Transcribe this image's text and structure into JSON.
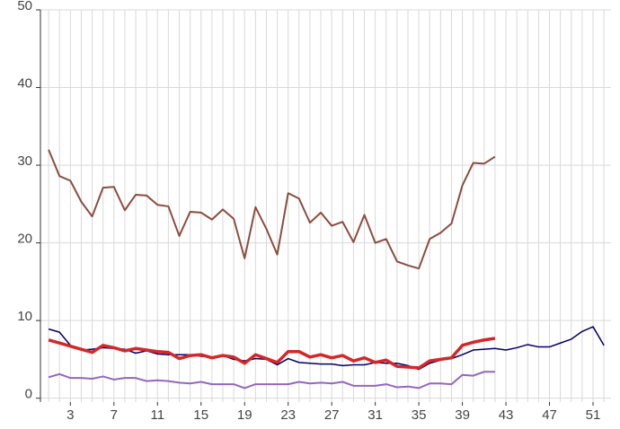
{
  "chart_data": {
    "type": "line",
    "x": [
      1,
      2,
      3,
      4,
      5,
      6,
      7,
      8,
      9,
      10,
      11,
      12,
      13,
      14,
      15,
      16,
      17,
      18,
      19,
      20,
      21,
      22,
      23,
      24,
      25,
      26,
      27,
      28,
      29,
      30,
      31,
      32,
      33,
      34,
      35,
      36,
      37,
      38,
      39,
      40,
      41,
      42,
      43,
      44,
      45,
      46,
      47,
      48,
      49,
      50,
      51,
      52
    ],
    "series": [
      {
        "color": "#8b4d3e",
        "width": 2,
        "values": [
          32,
          28.6,
          28,
          25.3,
          23.4,
          27.1,
          27.2,
          24.2,
          26.2,
          26.1,
          24.9,
          24.7,
          20.9,
          24,
          23.9,
          23,
          24.3,
          23.1,
          18,
          24.6,
          21.8,
          18.5,
          26.4,
          25.7,
          22.6,
          23.9,
          22.2,
          22.7,
          20.1,
          23.6,
          20,
          20.5,
          17.6,
          17.1,
          16.7,
          20.5,
          21.3,
          22.5,
          27.4,
          30.3,
          30.2,
          31.1,
          null,
          null,
          null,
          null,
          null,
          null,
          null,
          null,
          null,
          null
        ]
      },
      {
        "color": "#000066",
        "width": 1.5,
        "values": [
          8.9,
          8.5,
          6.8,
          6.2,
          6.3,
          6.5,
          6.4,
          6.3,
          5.8,
          6.1,
          5.7,
          5.6,
          5.6,
          5.6,
          5.4,
          5.3,
          5.5,
          5,
          4.8,
          5.1,
          5,
          4.3,
          5.1,
          4.6,
          4.5,
          4.4,
          4.4,
          4.2,
          4.3,
          4.3,
          4.6,
          4.5,
          4.5,
          4.2,
          3.7,
          4.5,
          4.9,
          5.1,
          5.6,
          6.2,
          6.3,
          6.4,
          6.2,
          6.5,
          6.9,
          6.6,
          6.6,
          7.1,
          7.6,
          8.6,
          9.2,
          6.8
        ]
      },
      {
        "color": "#d62728",
        "width": 3.5,
        "values": [
          7.5,
          7.1,
          6.7,
          6.3,
          5.9,
          6.8,
          6.5,
          6.1,
          6.4,
          6.2,
          6,
          5.9,
          5.1,
          5.5,
          5.6,
          5.2,
          5.5,
          5.3,
          4.5,
          5.6,
          5.1,
          4.6,
          6,
          6,
          5.3,
          5.6,
          5.2,
          5.5,
          4.8,
          5.2,
          4.6,
          4.9,
          4.1,
          4,
          3.9,
          4.8,
          5,
          5.2,
          6.8,
          7.2,
          7.5,
          7.7,
          null,
          null,
          null,
          null,
          null,
          null,
          null,
          null,
          null,
          null
        ]
      },
      {
        "color": "#9467bd",
        "width": 2,
        "values": [
          2.7,
          3.1,
          2.6,
          2.6,
          2.5,
          2.8,
          2.4,
          2.6,
          2.6,
          2.2,
          2.3,
          2.2,
          2,
          1.9,
          2.1,
          1.8,
          1.8,
          1.8,
          1.3,
          1.8,
          1.8,
          1.8,
          1.8,
          2.1,
          1.9,
          2,
          1.9,
          2.1,
          1.6,
          1.6,
          1.6,
          1.8,
          1.4,
          1.5,
          1.3,
          1.9,
          1.9,
          1.8,
          3,
          2.9,
          3.4,
          3.4,
          null,
          null,
          null,
          null,
          null,
          null,
          null,
          null,
          null,
          null
        ]
      }
    ],
    "xlim": [
      0.25,
      52.65
    ],
    "ylim": [
      -0.5,
      50
    ],
    "xticks": [
      3,
      7,
      11,
      15,
      19,
      23,
      27,
      31,
      35,
      39,
      43,
      47,
      51
    ],
    "xminorticks": [
      1,
      2,
      3,
      4,
      5,
      6,
      7,
      8,
      9,
      10,
      11,
      12,
      13,
      14,
      15,
      16,
      17,
      18,
      19,
      20,
      21,
      22,
      23,
      24,
      25,
      26,
      27,
      28,
      29,
      30,
      31,
      32,
      33,
      34,
      35,
      36,
      37,
      38,
      39,
      40,
      41,
      42,
      43,
      44,
      45,
      46,
      47,
      48,
      49,
      50,
      51,
      52
    ],
    "yticks": [
      0,
      10,
      20,
      30,
      40,
      50
    ],
    "grid": true
  }
}
